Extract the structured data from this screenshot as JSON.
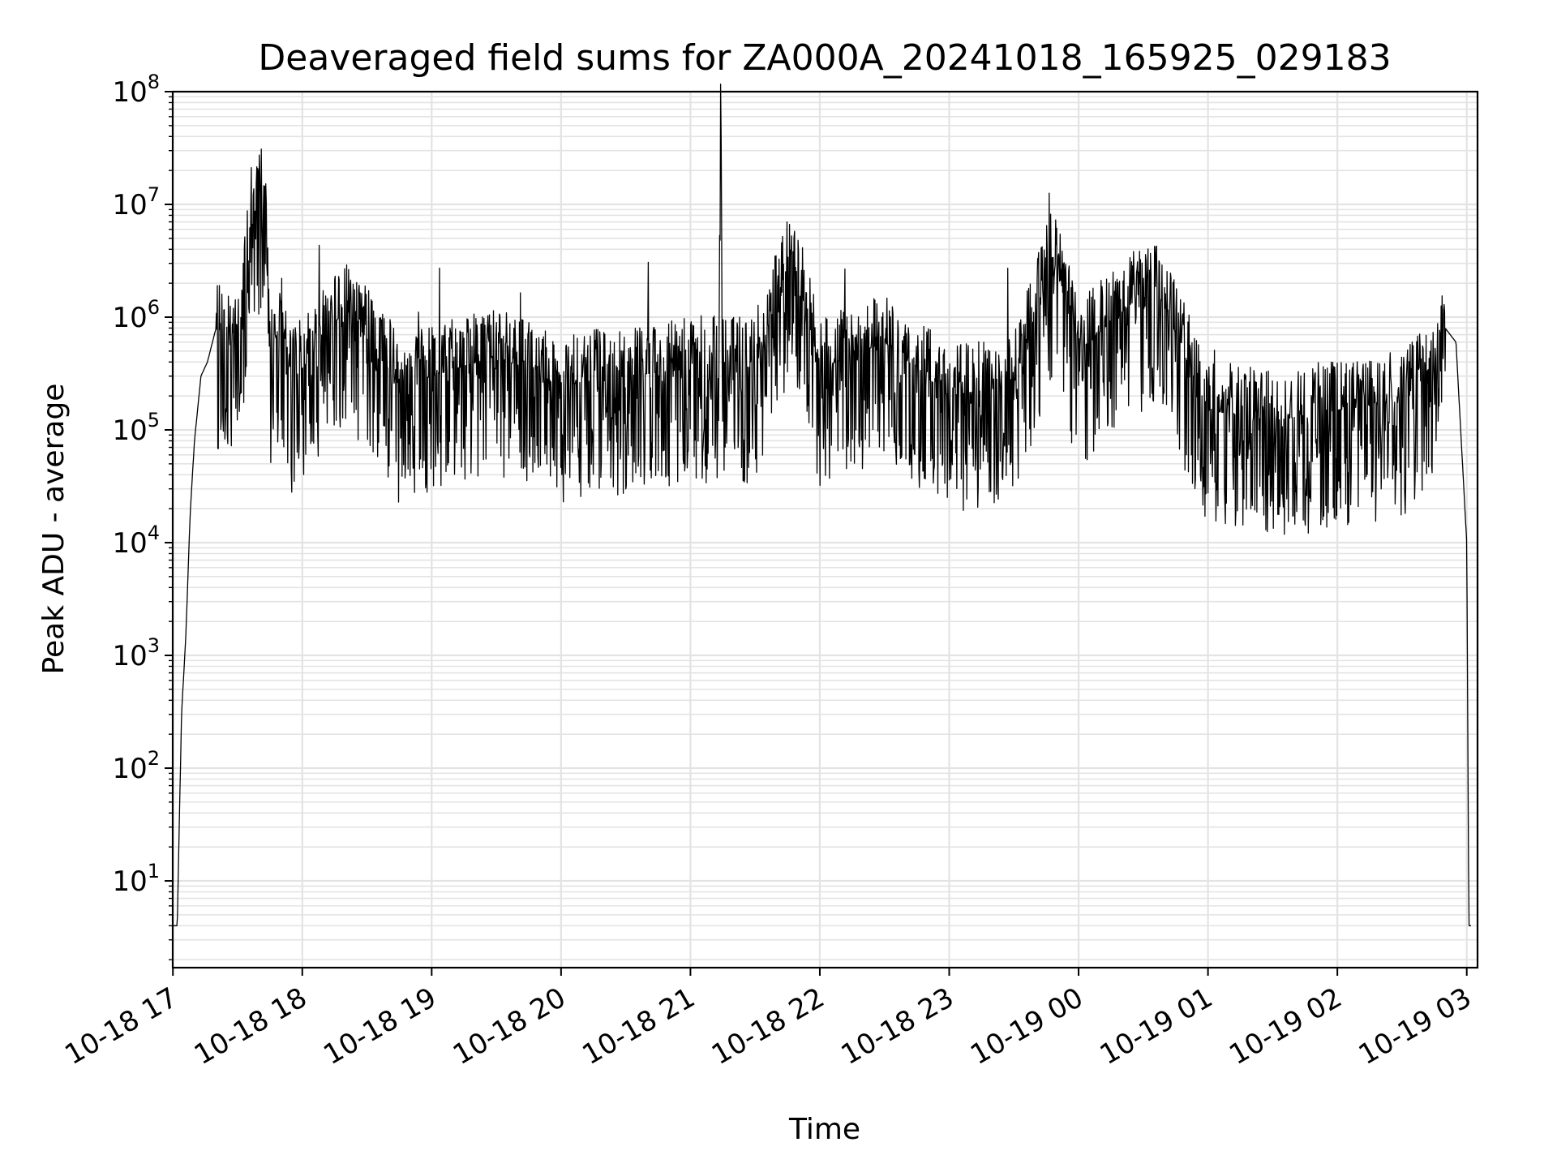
{
  "chart_data": {
    "type": "line",
    "title": "Deaveraged field sums for ZA000A_20241018_165925_029183",
    "xlabel": "Time",
    "ylabel": "Peak ADU - average",
    "y_scale": "log",
    "ylim": [
      1.7,
      100000000
    ],
    "xlim": [
      "10-18 16:59:55",
      "10-19 03:05:00"
    ],
    "x_ticks": [
      "10-18 17",
      "10-18 18",
      "10-18 19",
      "10-18 20",
      "10-18 21",
      "10-18 22",
      "10-18 23",
      "10-19 00",
      "10-19 01",
      "10-19 02",
      "10-19 03"
    ],
    "y_tick_exponents": [
      1,
      2,
      3,
      4,
      5,
      6,
      7,
      8
    ],
    "grid": true,
    "legend": "none",
    "line_color": "#000000",
    "grid_color": "#e3e3e3",
    "series": [
      {
        "x": [
          "10-18 17:00",
          "10-18 17:02",
          "10-18 17:04",
          "10-18 17:06",
          "10-18 17:08",
          "10-18 17:10",
          "10-18 17:13",
          "10-18 17:16",
          "10-18 17:20",
          "10-18 17:25",
          "10-18 17:30",
          "10-18 17:35",
          "10-18 17:38",
          "10-18 17:40",
          "10-18 17:41",
          "10-18 17:43",
          "10-18 17:45",
          "10-18 17:50",
          "10-18 17:55",
          "10-18 18:00",
          "10-18 18:20",
          "10-18 18:45",
          "10-18 19:00",
          "10-18 19:30",
          "10-18 20:00",
          "10-18 20:30",
          "10-18 21:00",
          "10-18 21:13",
          "10-18 21:14",
          "10-18 21:15",
          "10-18 21:30",
          "10-18 21:47",
          "10-18 22:00",
          "10-18 22:30",
          "10-18 23:00",
          "10-18 23:30",
          "10-18 23:48",
          "10-19 00:00",
          "10-19 00:35",
          "10-19 01:00",
          "10-19 01:30",
          "10-19 02:00",
          "10-19 02:30",
          "10-19 02:45",
          "10-19 02:50",
          "10-19 02:55",
          "10-19 03:00",
          "10-19 03:01",
          "10-19 03:02"
        ],
        "y": [
          4,
          4,
          300,
          1500,
          18000,
          80000,
          300000,
          400000,
          800000,
          600000,
          500000,
          5000000,
          8000000,
          10000000,
          13000000,
          6000000,
          400000,
          1000000,
          300000,
          350000,
          1200000,
          250000,
          300000,
          450000,
          250000,
          300000,
          350000,
          400000,
          45000000,
          400000,
          350000,
          3800000,
          350000,
          600000,
          200000,
          250000,
          3500000,
          500000,
          2000000,
          150000,
          120000,
          150000,
          180000,
          400000,
          800000,
          600000,
          10000,
          4,
          4
        ]
      }
    ]
  }
}
